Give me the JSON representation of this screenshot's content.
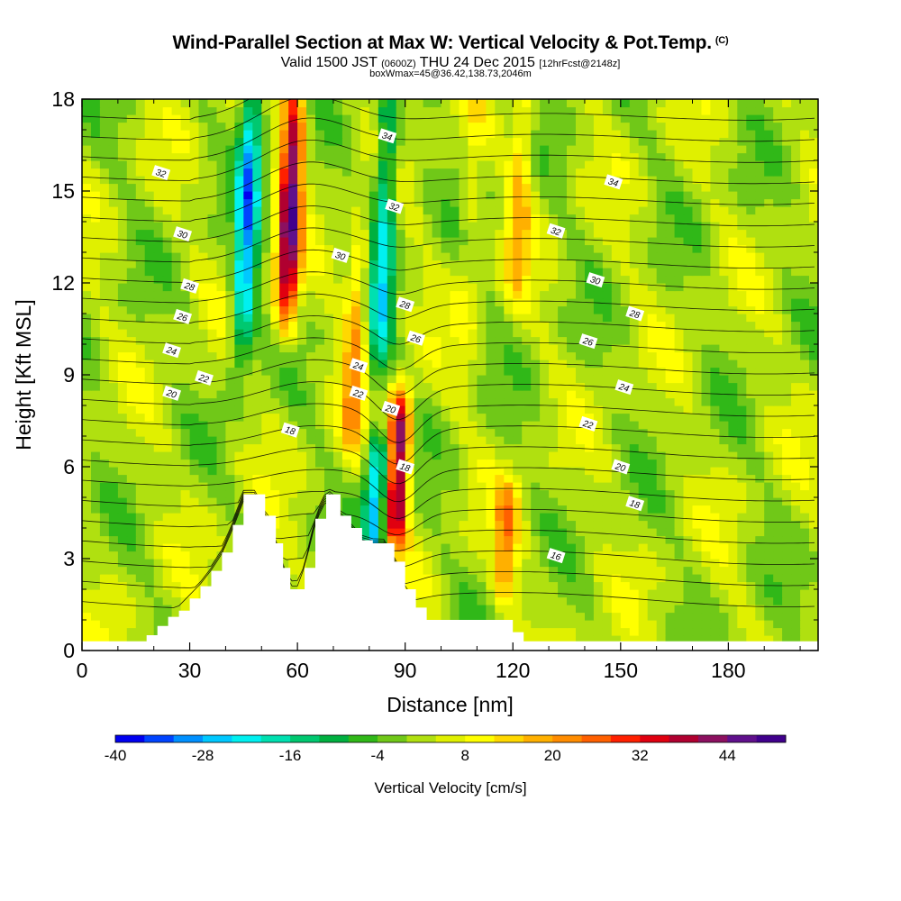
{
  "titles": {
    "main": "Wind-Parallel Section at Max W: Vertical Velocity & Pot.Temp.",
    "copyright": "(C)",
    "valid_prefix": "Valid 1500 JST",
    "utc": "(0600Z)",
    "valid_date": "THU 24 Dec 2015",
    "forecast": "[12hrFcst@2148z]",
    "box_info": "boxWmax=45@36.42,138.73,2046m"
  },
  "chart_data": {
    "type": "heatmap",
    "xlabel": "Distance [nm]",
    "ylabel": "Height [Kft MSL]",
    "xlim": [
      0,
      205
    ],
    "ylim": [
      0,
      18
    ],
    "x_ticks": [
      0,
      30,
      60,
      90,
      120,
      150,
      180
    ],
    "y_ticks": [
      0,
      3,
      6,
      9,
      12,
      15,
      18
    ],
    "colorbar": {
      "label": "Vertical Velocity [cm/s]",
      "min": -40,
      "max": 52,
      "step": 4,
      "tick_values": [
        -40,
        -28,
        -16,
        -4,
        8,
        20,
        32,
        44
      ],
      "colors": [
        "#0000f0",
        "#0044ff",
        "#0090ff",
        "#00c8ff",
        "#00f0f0",
        "#00e0b0",
        "#00c870",
        "#00b040",
        "#30b818",
        "#70c818",
        "#b0e010",
        "#e0f000",
        "#ffff00",
        "#ffd800",
        "#ffb000",
        "#ff8c00",
        "#ff6000",
        "#ff2000",
        "#e00010",
        "#b00030",
        "#8c1060",
        "#60108c",
        "#40008c"
      ]
    },
    "vertical_velocity_features": [
      {
        "x": 46,
        "z_range": [
          10,
          18
        ],
        "w": -28,
        "sense": "downdraft"
      },
      {
        "x": 58,
        "z_range": [
          11,
          18
        ],
        "w": 44,
        "sense": "updraft"
      },
      {
        "x": 76,
        "z_range": [
          7,
          13
        ],
        "w": 20,
        "sense": "updraft"
      },
      {
        "x": 84,
        "z_range": [
          9,
          18
        ],
        "w": -20,
        "sense": "downdraft"
      },
      {
        "x": 88,
        "z_range": [
          4,
          8
        ],
        "w": 45,
        "sense": "updraft"
      },
      {
        "x": 82,
        "z_range": [
          3.5,
          6.5
        ],
        "w": -28,
        "sense": "downdraft"
      },
      {
        "x": 108,
        "z_range": [
          10,
          18
        ],
        "w": 8,
        "sense": "updraft"
      },
      {
        "x": 122,
        "z_range": [
          12,
          18
        ],
        "w": 16,
        "sense": "updraft"
      },
      {
        "x": 118,
        "z_range": [
          2,
          5
        ],
        "w": 20,
        "sense": "updraft"
      }
    ],
    "isentrope_labels": [
      {
        "value": "32",
        "x": 22,
        "z": 15.6
      },
      {
        "value": "30",
        "x": 28,
        "z": 13.6
      },
      {
        "value": "28",
        "x": 30,
        "z": 11.9
      },
      {
        "value": "26",
        "x": 28,
        "z": 10.9
      },
      {
        "value": "24",
        "x": 25,
        "z": 9.8
      },
      {
        "value": "22",
        "x": 34,
        "z": 8.9
      },
      {
        "value": "20",
        "x": 25,
        "z": 8.4
      },
      {
        "value": "18",
        "x": 58,
        "z": 7.2
      },
      {
        "value": "34",
        "x": 85,
        "z": 16.8
      },
      {
        "value": "32",
        "x": 87,
        "z": 14.5
      },
      {
        "value": "30",
        "x": 72,
        "z": 12.9
      },
      {
        "value": "28",
        "x": 90,
        "z": 11.3
      },
      {
        "value": "26",
        "x": 93,
        "z": 10.2
      },
      {
        "value": "24",
        "x": 77,
        "z": 9.3
      },
      {
        "value": "22",
        "x": 77,
        "z": 8.4
      },
      {
        "value": "20",
        "x": 86,
        "z": 7.9
      },
      {
        "value": "18",
        "x": 90,
        "z": 6.0
      },
      {
        "value": "34",
        "x": 148,
        "z": 15.3
      },
      {
        "value": "32",
        "x": 132,
        "z": 13.7
      },
      {
        "value": "30",
        "x": 143,
        "z": 12.1
      },
      {
        "value": "28",
        "x": 154,
        "z": 11.0
      },
      {
        "value": "26",
        "x": 141,
        "z": 10.1
      },
      {
        "value": "24",
        "x": 151,
        "z": 8.6
      },
      {
        "value": "22",
        "x": 141,
        "z": 7.4
      },
      {
        "value": "20",
        "x": 150,
        "z": 6.0
      },
      {
        "value": "18",
        "x": 154,
        "z": 4.8
      },
      {
        "value": "16",
        "x": 132,
        "z": 3.1
      }
    ],
    "terrain_profile": {
      "x": [
        0,
        15,
        18,
        21,
        24,
        27,
        30,
        33,
        36,
        39,
        42,
        45,
        48,
        51,
        54,
        56,
        58,
        60,
        62,
        65,
        68,
        70,
        72,
        75,
        78,
        81,
        84,
        87,
        90,
        93,
        96,
        100,
        110,
        118,
        120,
        123,
        126,
        205
      ],
      "z": [
        0.3,
        0.3,
        0.5,
        0.8,
        1.1,
        1.3,
        1.7,
        2.1,
        2.6,
        3.2,
        4.1,
        5.1,
        5.1,
        4.4,
        3.5,
        2.7,
        2.0,
        2.0,
        2.7,
        4.3,
        5.1,
        5.1,
        4.4,
        4.0,
        3.6,
        3.5,
        3.5,
        2.9,
        2.0,
        1.4,
        1.0,
        1.0,
        1.0,
        1.0,
        0.6,
        0.3,
        0.3,
        0.3
      ]
    },
    "grid": false,
    "legend": "bottom"
  }
}
